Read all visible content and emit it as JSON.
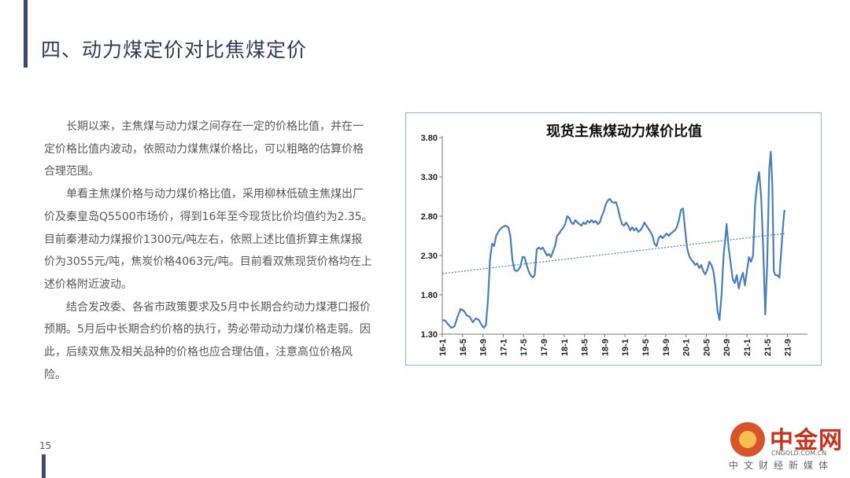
{
  "page": {
    "title": "四、动力煤定价对比焦煤定价",
    "page_number": "15"
  },
  "body": {
    "paragraphs": [
      "长期以来，主焦煤与动力煤之间存在一定的价格比值，并在一定价格比值内波动，依照动力煤焦煤价格比，可以粗略的估算价格合理范围。",
      "单看主焦煤价格与动力煤价格比值，采用柳林低硫主焦煤出厂价及秦皇岛Q5500市场价，得到16年至今现货比价均值约为2.35。目前秦港动力煤报价1300元/吨左右，依照上述比值折算主焦煤报价为3055元/吨，焦炭价格4063元/吨。目前看双焦现货价格均在上述价格附近波动。",
      "结合发改委、各省市政策要求及5月中长期合约动力煤港口报价预期。5月后中长期合约价格的执行，势必带动动力煤价格走弱。因此，后续双焦及相关品种的价格也应合理估值，注意高位价格风险。"
    ]
  },
  "watermark": {
    "name": "中金网",
    "url": "CNGOLD.COM.CN",
    "subtitle": "中文财经新媒体"
  },
  "chart_data": {
    "type": "line",
    "title": "现货主焦煤动力煤价比值",
    "xlabel": "",
    "ylabel": "",
    "ylim": [
      1.3,
      3.8
    ],
    "yticks": [
      "3.80",
      "3.30",
      "2.80",
      "2.30",
      "1.80",
      "1.30"
    ],
    "ytick_values": [
      3.8,
      3.3,
      2.8,
      2.3,
      1.8,
      1.3
    ],
    "x_range": [
      0,
      71
    ],
    "xticks": [
      "16-1",
      "16-5",
      "16-9",
      "17-1",
      "17-5",
      "17-9",
      "18-1",
      "18-5",
      "18-9",
      "19-1",
      "19-5",
      "19-9",
      "20-1",
      "20-5",
      "20-9",
      "21-1",
      "21-5",
      "21-9"
    ],
    "xtick_values": [
      0,
      4,
      8,
      12,
      16,
      20,
      24,
      28,
      32,
      36,
      40,
      44,
      48,
      52,
      56,
      60,
      64,
      68
    ],
    "series": [
      {
        "color": "#4a7ebb",
        "points": [
          [
            0,
            1.48
          ],
          [
            0.6,
            1.47
          ],
          [
            1.2,
            1.42
          ],
          [
            1.8,
            1.38
          ],
          [
            2.4,
            1.4
          ],
          [
            3.0,
            1.52
          ],
          [
            3.6,
            1.62
          ],
          [
            4.2,
            1.6
          ],
          [
            4.8,
            1.54
          ],
          [
            5.4,
            1.52
          ],
          [
            6.0,
            1.45
          ],
          [
            6.6,
            1.5
          ],
          [
            7.2,
            1.48
          ],
          [
            7.7,
            1.42
          ],
          [
            8.2,
            1.38
          ],
          [
            8.6,
            1.42
          ],
          [
            9.0,
            1.75
          ],
          [
            9.4,
            2.25
          ],
          [
            9.8,
            2.45
          ],
          [
            10.2,
            2.42
          ],
          [
            10.6,
            2.55
          ],
          [
            11.2,
            2.62
          ],
          [
            11.8,
            2.66
          ],
          [
            12.4,
            2.68
          ],
          [
            13.0,
            2.66
          ],
          [
            13.4,
            2.55
          ],
          [
            13.8,
            2.25
          ],
          [
            14.2,
            2.12
          ],
          [
            14.6,
            2.1
          ],
          [
            15.0,
            2.12
          ],
          [
            15.4,
            2.16
          ],
          [
            15.8,
            2.28
          ],
          [
            16.2,
            2.28
          ],
          [
            16.6,
            2.18
          ],
          [
            17.0,
            2.1
          ],
          [
            17.4,
            2.05
          ],
          [
            17.8,
            2.02
          ],
          [
            18.2,
            2.05
          ],
          [
            18.6,
            2.38
          ],
          [
            19.0,
            2.4
          ],
          [
            19.4,
            2.38
          ],
          [
            19.8,
            2.4
          ],
          [
            20.2,
            2.35
          ],
          [
            20.6,
            2.3
          ],
          [
            21.0,
            2.32
          ],
          [
            21.4,
            2.28
          ],
          [
            21.8,
            2.35
          ],
          [
            22.2,
            2.42
          ],
          [
            22.6,
            2.55
          ],
          [
            23.0,
            2.58
          ],
          [
            23.4,
            2.62
          ],
          [
            23.8,
            2.65
          ],
          [
            24.2,
            2.7
          ],
          [
            24.6,
            2.8
          ],
          [
            25.0,
            2.78
          ],
          [
            25.4,
            2.72
          ],
          [
            25.8,
            2.7
          ],
          [
            26.2,
            2.75
          ],
          [
            26.6,
            2.72
          ],
          [
            27.0,
            2.7
          ],
          [
            27.4,
            2.68
          ],
          [
            27.8,
            2.72
          ],
          [
            28.2,
            2.7
          ],
          [
            28.6,
            2.74
          ],
          [
            29.0,
            2.72
          ],
          [
            29.4,
            2.75
          ],
          [
            29.8,
            2.72
          ],
          [
            30.2,
            2.74
          ],
          [
            30.6,
            2.7
          ],
          [
            31.0,
            2.72
          ],
          [
            31.4,
            2.8
          ],
          [
            31.8,
            2.86
          ],
          [
            32.2,
            2.95
          ],
          [
            32.6,
            3.0
          ],
          [
            33.0,
            3.02
          ],
          [
            33.4,
            2.98
          ],
          [
            33.8,
            2.97
          ],
          [
            34.2,
            2.98
          ],
          [
            34.6,
            2.9
          ],
          [
            35.0,
            2.78
          ],
          [
            35.4,
            2.7
          ],
          [
            35.8,
            2.68
          ],
          [
            36.2,
            2.72
          ],
          [
            36.6,
            2.68
          ],
          [
            37.0,
            2.62
          ],
          [
            37.4,
            2.66
          ],
          [
            37.8,
            2.62
          ],
          [
            38.2,
            2.65
          ],
          [
            38.6,
            2.6
          ],
          [
            39.0,
            2.62
          ],
          [
            39.4,
            2.66
          ],
          [
            39.8,
            2.72
          ],
          [
            40.2,
            2.68
          ],
          [
            40.6,
            2.64
          ],
          [
            41.0,
            2.6
          ],
          [
            41.4,
            2.55
          ],
          [
            41.8,
            2.45
          ],
          [
            42.2,
            2.42
          ],
          [
            42.6,
            2.52
          ],
          [
            43.0,
            2.55
          ],
          [
            43.4,
            2.52
          ],
          [
            43.8,
            2.55
          ],
          [
            44.2,
            2.58
          ],
          [
            44.6,
            2.55
          ],
          [
            45.0,
            2.58
          ],
          [
            45.4,
            2.6
          ],
          [
            45.8,
            2.62
          ],
          [
            46.2,
            2.66
          ],
          [
            46.6,
            2.75
          ],
          [
            47.0,
            2.88
          ],
          [
            47.4,
            2.9
          ],
          [
            47.8,
            2.65
          ],
          [
            48.2,
            2.4
          ],
          [
            48.6,
            2.3
          ],
          [
            49.0,
            2.25
          ],
          [
            49.4,
            2.22
          ],
          [
            49.8,
            2.18
          ],
          [
            50.2,
            2.2
          ],
          [
            50.6,
            2.14
          ],
          [
            51.0,
            2.18
          ],
          [
            51.4,
            2.1
          ],
          [
            51.8,
            2.06
          ],
          [
            52.2,
            2.12
          ],
          [
            52.6,
            2.22
          ],
          [
            53.0,
            2.18
          ],
          [
            53.4,
            2.1
          ],
          [
            53.8,
            1.9
          ],
          [
            54.2,
            1.6
          ],
          [
            54.6,
            1.48
          ],
          [
            55.0,
            1.8
          ],
          [
            55.4,
            2.3
          ],
          [
            55.8,
            2.55
          ],
          [
            56.0,
            2.7
          ],
          [
            56.4,
            2.4
          ],
          [
            56.8,
            2.2
          ],
          [
            57.2,
            2.0
          ],
          [
            57.6,
            1.95
          ],
          [
            58.0,
            2.05
          ],
          [
            58.4,
            1.88
          ],
          [
            58.8,
            2.0
          ],
          [
            59.2,
            2.08
          ],
          [
            59.6,
            1.92
          ],
          [
            60.0,
            2.1
          ],
          [
            60.4,
            2.28
          ],
          [
            60.8,
            2.22
          ],
          [
            61.2,
            2.3
          ],
          [
            61.6,
            2.95
          ],
          [
            62.0,
            3.2
          ],
          [
            62.4,
            3.36
          ],
          [
            62.8,
            3.05
          ],
          [
            63.2,
            2.4
          ],
          [
            63.6,
            1.55
          ],
          [
            64.0,
            2.2
          ],
          [
            64.4,
            3.4
          ],
          [
            64.7,
            3.62
          ],
          [
            65.0,
            3.2
          ],
          [
            65.3,
            2.1
          ],
          [
            65.6,
            2.05
          ],
          [
            66.0,
            2.05
          ],
          [
            66.4,
            2.02
          ],
          [
            66.8,
            2.4
          ],
          [
            67.2,
            2.75
          ],
          [
            67.4,
            2.88
          ]
        ]
      },
      {
        "color": "#4a7ebb",
        "trendline": true,
        "points": [
          [
            0,
            2.07
          ],
          [
            67.4,
            2.58
          ]
        ]
      }
    ]
  }
}
